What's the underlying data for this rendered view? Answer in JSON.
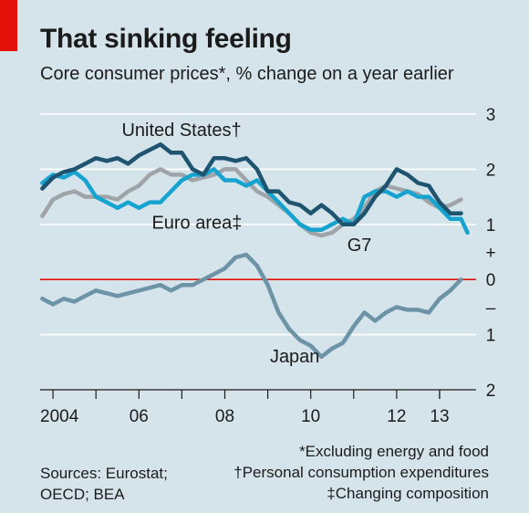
{
  "header": {
    "title": "That sinking feeling",
    "subtitle": "Core consumer prices*, % change on a year earlier"
  },
  "footer": {
    "notes": [
      "*Excluding energy and food",
      "†Personal consumption expenditures",
      "‡Changing composition"
    ],
    "sources": [
      "Sources: Eurostat;",
      "OECD; BEA"
    ]
  },
  "colors": {
    "us": "#1e5470",
    "euro": "#16a3d0",
    "g7": "#9ea4a7",
    "japan": "#6c93a6",
    "zero_line": "#e3120b",
    "grid": "#ffffff",
    "background": "#d5e4eb"
  },
  "chart_data": {
    "type": "line",
    "title": "That sinking feeling",
    "subtitle": "Core consumer prices*, % change on a year earlier",
    "xlim": [
      2003.7,
      2013.85
    ],
    "ylim": [
      -2,
      3
    ],
    "y_ticks": [
      {
        "value": 3,
        "label": "3"
      },
      {
        "value": 2,
        "label": "2"
      },
      {
        "value": 1,
        "label": "1"
      },
      {
        "value": 0.5,
        "label": "+"
      },
      {
        "value": 0,
        "label": "0"
      },
      {
        "value": -0.5,
        "label": "–"
      },
      {
        "value": -1,
        "label": "1"
      },
      {
        "value": -2,
        "label": "2"
      }
    ],
    "x_ticks": [
      {
        "value": 2004,
        "label": "2004"
      },
      {
        "value": 2006,
        "label": "06"
      },
      {
        "value": 2008,
        "label": "08"
      },
      {
        "value": 2010,
        "label": "10"
      },
      {
        "value": 2012,
        "label": "12"
      },
      {
        "value": 2013,
        "label": "13"
      }
    ],
    "series": [
      {
        "key": "g7",
        "name": "G7",
        "points": [
          [
            2003.75,
            1.15
          ],
          [
            2004.0,
            1.45
          ],
          [
            2004.25,
            1.55
          ],
          [
            2004.5,
            1.6
          ],
          [
            2004.75,
            1.5
          ],
          [
            2005.0,
            1.5
          ],
          [
            2005.25,
            1.5
          ],
          [
            2005.5,
            1.45
          ],
          [
            2005.75,
            1.6
          ],
          [
            2006.0,
            1.7
          ],
          [
            2006.25,
            1.9
          ],
          [
            2006.5,
            2.0
          ],
          [
            2006.75,
            1.9
          ],
          [
            2007.0,
            1.9
          ],
          [
            2007.25,
            1.8
          ],
          [
            2007.5,
            1.85
          ],
          [
            2007.75,
            1.9
          ],
          [
            2008.0,
            2.0
          ],
          [
            2008.25,
            2.0
          ],
          [
            2008.5,
            1.8
          ],
          [
            2008.75,
            1.6
          ],
          [
            2009.0,
            1.5
          ],
          [
            2009.25,
            1.35
          ],
          [
            2009.5,
            1.2
          ],
          [
            2009.75,
            1.0
          ],
          [
            2010.0,
            0.85
          ],
          [
            2010.25,
            0.8
          ],
          [
            2010.5,
            0.85
          ],
          [
            2010.75,
            1.0
          ],
          [
            2011.0,
            1.1
          ],
          [
            2011.25,
            1.3
          ],
          [
            2011.5,
            1.6
          ],
          [
            2011.75,
            1.7
          ],
          [
            2012.0,
            1.65
          ],
          [
            2012.25,
            1.6
          ],
          [
            2012.5,
            1.55
          ],
          [
            2012.75,
            1.4
          ],
          [
            2013.0,
            1.3
          ],
          [
            2013.25,
            1.35
          ],
          [
            2013.5,
            1.45
          ]
        ]
      },
      {
        "key": "euro",
        "name": "Euro area",
        "points": [
          [
            2003.75,
            1.75
          ],
          [
            2004.0,
            1.9
          ],
          [
            2004.25,
            1.85
          ],
          [
            2004.5,
            1.95
          ],
          [
            2004.75,
            1.8
          ],
          [
            2005.0,
            1.5
          ],
          [
            2005.25,
            1.4
          ],
          [
            2005.5,
            1.3
          ],
          [
            2005.75,
            1.4
          ],
          [
            2006.0,
            1.3
          ],
          [
            2006.25,
            1.4
          ],
          [
            2006.5,
            1.4
          ],
          [
            2006.75,
            1.6
          ],
          [
            2007.0,
            1.8
          ],
          [
            2007.25,
            1.9
          ],
          [
            2007.5,
            1.9
          ],
          [
            2007.75,
            2.0
          ],
          [
            2008.0,
            1.8
          ],
          [
            2008.25,
            1.8
          ],
          [
            2008.5,
            1.7
          ],
          [
            2008.75,
            1.8
          ],
          [
            2009.0,
            1.6
          ],
          [
            2009.25,
            1.4
          ],
          [
            2009.5,
            1.2
          ],
          [
            2009.75,
            1.0
          ],
          [
            2010.0,
            0.9
          ],
          [
            2010.25,
            0.9
          ],
          [
            2010.5,
            1.0
          ],
          [
            2010.75,
            1.1
          ],
          [
            2011.0,
            1.0
          ],
          [
            2011.25,
            1.5
          ],
          [
            2011.5,
            1.6
          ],
          [
            2011.75,
            1.6
          ],
          [
            2012.0,
            1.5
          ],
          [
            2012.25,
            1.6
          ],
          [
            2012.5,
            1.5
          ],
          [
            2012.75,
            1.5
          ],
          [
            2013.0,
            1.3
          ],
          [
            2013.25,
            1.1
          ],
          [
            2013.5,
            1.1
          ],
          [
            2013.65,
            0.85
          ]
        ]
      },
      {
        "key": "us",
        "name": "United States",
        "points": [
          [
            2003.75,
            1.65
          ],
          [
            2004.0,
            1.85
          ],
          [
            2004.25,
            1.95
          ],
          [
            2004.5,
            2.0
          ],
          [
            2004.75,
            2.1
          ],
          [
            2005.0,
            2.2
          ],
          [
            2005.25,
            2.15
          ],
          [
            2005.5,
            2.2
          ],
          [
            2005.75,
            2.1
          ],
          [
            2006.0,
            2.25
          ],
          [
            2006.25,
            2.35
          ],
          [
            2006.5,
            2.45
          ],
          [
            2006.75,
            2.3
          ],
          [
            2007.0,
            2.3
          ],
          [
            2007.25,
            2.0
          ],
          [
            2007.5,
            1.9
          ],
          [
            2007.75,
            2.2
          ],
          [
            2008.0,
            2.2
          ],
          [
            2008.25,
            2.15
          ],
          [
            2008.5,
            2.2
          ],
          [
            2008.75,
            2.0
          ],
          [
            2009.0,
            1.6
          ],
          [
            2009.25,
            1.6
          ],
          [
            2009.5,
            1.4
          ],
          [
            2009.75,
            1.35
          ],
          [
            2010.0,
            1.2
          ],
          [
            2010.25,
            1.35
          ],
          [
            2010.5,
            1.2
          ],
          [
            2010.75,
            1.0
          ],
          [
            2011.0,
            1.0
          ],
          [
            2011.25,
            1.2
          ],
          [
            2011.5,
            1.5
          ],
          [
            2011.75,
            1.7
          ],
          [
            2012.0,
            2.0
          ],
          [
            2012.25,
            1.9
          ],
          [
            2012.5,
            1.75
          ],
          [
            2012.75,
            1.7
          ],
          [
            2013.0,
            1.4
          ],
          [
            2013.25,
            1.2
          ],
          [
            2013.5,
            1.2
          ]
        ]
      },
      {
        "key": "japan",
        "name": "Japan",
        "points": [
          [
            2003.75,
            -0.35
          ],
          [
            2004.0,
            -0.45
          ],
          [
            2004.25,
            -0.35
          ],
          [
            2004.5,
            -0.4
          ],
          [
            2004.75,
            -0.3
          ],
          [
            2005.0,
            -0.2
          ],
          [
            2005.25,
            -0.25
          ],
          [
            2005.5,
            -0.3
          ],
          [
            2005.75,
            -0.25
          ],
          [
            2006.0,
            -0.2
          ],
          [
            2006.25,
            -0.15
          ],
          [
            2006.5,
            -0.1
          ],
          [
            2006.75,
            -0.2
          ],
          [
            2007.0,
            -0.1
          ],
          [
            2007.25,
            -0.1
          ],
          [
            2007.5,
            0.0
          ],
          [
            2007.75,
            0.1
          ],
          [
            2008.0,
            0.2
          ],
          [
            2008.25,
            0.4
          ],
          [
            2008.5,
            0.45
          ],
          [
            2008.75,
            0.25
          ],
          [
            2009.0,
            -0.1
          ],
          [
            2009.25,
            -0.6
          ],
          [
            2009.5,
            -0.9
          ],
          [
            2009.75,
            -1.1
          ],
          [
            2010.0,
            -1.2
          ],
          [
            2010.25,
            -1.4
          ],
          [
            2010.5,
            -1.25
          ],
          [
            2010.75,
            -1.15
          ],
          [
            2011.0,
            -0.85
          ],
          [
            2011.25,
            -0.6
          ],
          [
            2011.5,
            -0.75
          ],
          [
            2011.75,
            -0.6
          ],
          [
            2012.0,
            -0.5
          ],
          [
            2012.25,
            -0.55
          ],
          [
            2012.5,
            -0.55
          ],
          [
            2012.75,
            -0.6
          ],
          [
            2013.0,
            -0.35
          ],
          [
            2013.25,
            -0.2
          ],
          [
            2013.5,
            0.0
          ]
        ]
      }
    ],
    "annotations": [
      {
        "series": "us",
        "text": "United States†",
        "x": 2005.6,
        "y": 2.6
      },
      {
        "series": "euro",
        "text": "Euro area‡",
        "x": 2006.3,
        "y": 0.92
      },
      {
        "series": "g7",
        "text": "G7",
        "x": 2010.85,
        "y": 0.52
      },
      {
        "series": "japan",
        "text": "Japan",
        "x": 2009.05,
        "y": -1.5
      }
    ]
  }
}
